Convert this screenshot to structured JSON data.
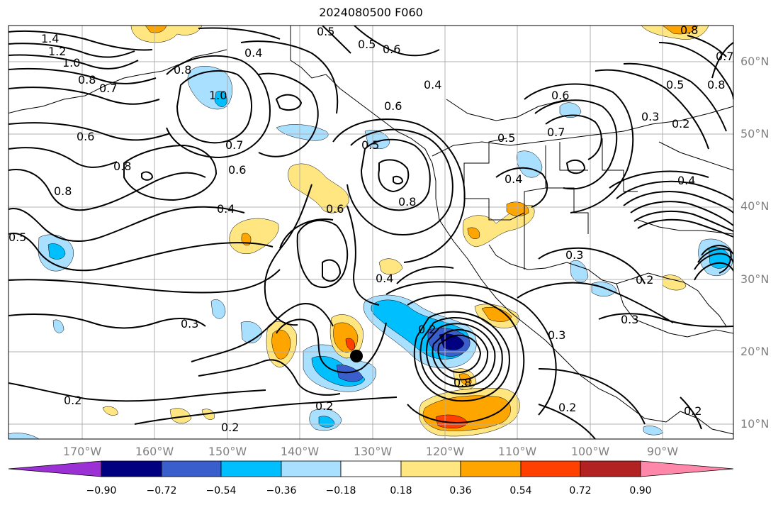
{
  "title": "2024080500 F060",
  "lat_labels": [
    "60°N",
    "50°N",
    "40°N",
    "30°N",
    "20°N",
    "10°N"
  ],
  "lon_labels": [
    "170°W",
    "160°W",
    "150°W",
    "140°W",
    "130°W",
    "120°W",
    "110°W",
    "100°W",
    "90°W"
  ],
  "colorbar": {
    "ticks": [
      "−0.90",
      "−0.72",
      "−0.54",
      "−0.36",
      "−0.18",
      "0.18",
      "0.36",
      "0.54",
      "0.72",
      "0.90"
    ],
    "colors": [
      "#9b30d4",
      "#000080",
      "#3a5fcd",
      "#00bfff",
      "#a9dfff",
      "#ffffff",
      "#ffe680",
      "#ffa500",
      "#ff4000",
      "#b22222",
      "#ff88aa"
    ]
  },
  "contour_labels": [
    "1.4",
    "1.2",
    "1.0",
    "0.8",
    "0.7",
    "0.8",
    "0.6",
    "0.5",
    "1.0",
    "0.8",
    "0.7",
    "0.6",
    "0.4",
    "0.8",
    "0.5",
    "0.4",
    "0.6",
    "0.5",
    "0.3",
    "0.2",
    "0.4",
    "0.4",
    "0.8",
    "0.6",
    "0.3",
    "0.2",
    "0.2",
    "0.2",
    "0.3",
    "0.5",
    "0.4",
    "0.2",
    "0.3",
    "0.2",
    "0.2",
    "0.8",
    "0.6",
    "0.4",
    "0.2",
    "0.3",
    "0.7",
    "0.5",
    "0.8",
    "0.7",
    "0.8",
    "0.5",
    "0.6"
  ]
}
